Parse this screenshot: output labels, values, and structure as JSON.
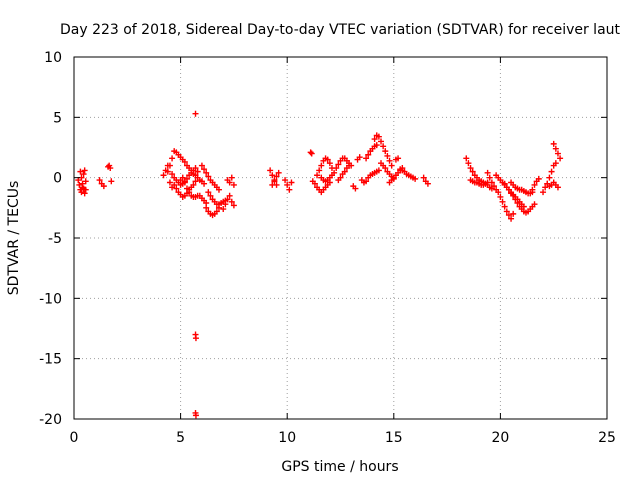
{
  "chart_data": {
    "type": "scatter",
    "title": "Day 223 of 2018, Sidereal Day-to-day VTEC variation (SDTVAR) for receiver laut",
    "xlabel": "GPS time / hours",
    "ylabel": "SDTVAR / TECUs",
    "xlim": [
      0,
      25
    ],
    "ylim": [
      -20,
      10
    ],
    "x_ticks": [
      0,
      5,
      10,
      15,
      20,
      25
    ],
    "y_ticks": [
      -20,
      -15,
      -10,
      -5,
      0,
      5,
      10
    ],
    "grid": true,
    "marker": "plus",
    "color": "#ff0000",
    "series": [
      {
        "name": "SDTVAR",
        "segments": [
          {
            "x": [
              0.2,
              0.25,
              0.3,
              0.35,
              0.4,
              0.45,
              0.5,
              0.55
            ],
            "y": [
              -0.2,
              -0.6,
              -1.0,
              -1.2,
              -0.8,
              0.3,
              0.6,
              -0.3
            ]
          },
          {
            "x": [
              0.3,
              0.35,
              0.4,
              0.45,
              0.5,
              0.55
            ],
            "y": [
              0.5,
              0.0,
              -0.5,
              -0.9,
              -1.3,
              -1.0
            ]
          },
          {
            "x": [
              1.2,
              1.3,
              1.4
            ],
            "y": [
              -0.2,
              -0.5,
              -0.7
            ]
          },
          {
            "x": [
              1.6,
              1.65,
              1.7,
              1.75
            ],
            "y": [
              0.9,
              1.0,
              0.8,
              -0.3
            ]
          },
          {
            "x": [
              4.2,
              4.3,
              4.4,
              4.5,
              4.6
            ],
            "y": [
              0.2,
              0.6,
              1.0,
              -0.4,
              -0.8
            ]
          },
          {
            "x": [
              4.4,
              4.5,
              4.6,
              4.7,
              4.8,
              4.9,
              5.0,
              5.1,
              5.2,
              5.3,
              5.4,
              5.5,
              5.6,
              5.7,
              5.8,
              5.9,
              6.0,
              6.1
            ],
            "y": [
              0.5,
              1.0,
              1.6,
              2.2,
              2.1,
              1.9,
              1.7,
              1.5,
              1.3,
              1.0,
              0.8,
              0.6,
              0.3,
              0.2,
              0.0,
              -0.2,
              -0.3,
              -0.5
            ]
          },
          {
            "x": [
              4.6,
              4.7,
              4.8,
              4.9,
              5.0,
              5.1,
              5.2,
              5.3,
              5.4,
              5.5,
              5.6,
              5.7,
              5.8
            ],
            "y": [
              0.3,
              0.0,
              -0.2,
              -0.4,
              -0.6,
              -0.5,
              -0.3,
              -0.1,
              0.2,
              0.4,
              0.6,
              0.8,
              0.5
            ]
          },
          {
            "x": [
              4.7,
              4.8,
              4.9,
              5.0,
              5.1,
              5.2,
              5.3,
              5.4,
              5.5,
              5.6,
              5.7
            ],
            "y": [
              -0.6,
              -0.9,
              -1.2,
              -1.4,
              -1.6,
              -1.5,
              -1.3,
              -1.0,
              -0.8,
              -0.6,
              -0.3
            ]
          },
          {
            "x": [
              5.0,
              5.1,
              5.2,
              5.3,
              5.4,
              5.5,
              5.6,
              5.7,
              5.8,
              5.9,
              6.0,
              6.1,
              6.2
            ],
            "y": [
              -0.2,
              0.0,
              -0.4,
              -0.9,
              -1.2,
              -1.5,
              -1.6,
              -1.6,
              -1.5,
              -1.5,
              -1.7,
              -1.9,
              -2.1
            ]
          },
          {
            "x": [
              5.7
            ],
            "y": [
              5.3
            ]
          },
          {
            "x": [
              5.7,
              5.72
            ],
            "y": [
              -13.0,
              -13.3
            ]
          },
          {
            "x": [
              5.7,
              5.72
            ],
            "y": [
              -19.5,
              -19.7
            ]
          },
          {
            "x": [
              6.0,
              6.1,
              6.2,
              6.3,
              6.4,
              6.5,
              6.6,
              6.7,
              6.8
            ],
            "y": [
              1.0,
              0.7,
              0.4,
              0.1,
              -0.2,
              -0.4,
              -0.6,
              -0.8,
              -1.0
            ]
          },
          {
            "x": [
              6.2,
              6.3,
              6.4,
              6.5,
              6.6,
              6.7,
              6.8
            ],
            "y": [
              -2.5,
              -2.8,
              -3.0,
              -3.1,
              -3.0,
              -2.8,
              -2.5
            ]
          },
          {
            "x": [
              6.3,
              6.4,
              6.5,
              6.6,
              6.7,
              6.8,
              6.9,
              7.0,
              7.1
            ],
            "y": [
              -1.2,
              -1.5,
              -1.8,
              -2.0,
              -2.2,
              -2.2,
              -2.1,
              -2.0,
              -1.9
            ]
          },
          {
            "x": [
              7.0,
              7.1,
              7.2,
              7.3,
              7.4,
              7.5
            ],
            "y": [
              -2.6,
              -2.2,
              -1.8,
              -1.5,
              -2.0,
              -2.3
            ]
          },
          {
            "x": [
              7.2,
              7.3,
              7.4,
              7.5
            ],
            "y": [
              -0.2,
              -0.4,
              0.0,
              -0.6
            ]
          },
          {
            "x": [
              9.2,
              9.3,
              9.4,
              9.5
            ],
            "y": [
              0.6,
              0.2,
              -0.2,
              -0.6
            ]
          },
          {
            "x": [
              9.3,
              9.4,
              9.5,
              9.6
            ],
            "y": [
              -0.6,
              -0.3,
              0.1,
              0.4
            ]
          },
          {
            "x": [
              9.9,
              10.0,
              10.1,
              10.2
            ],
            "y": [
              -0.2,
              -0.6,
              -1.0,
              -0.4
            ]
          },
          {
            "x": [
              11.1,
              11.15
            ],
            "y": [
              2.1,
              2.0
            ]
          },
          {
            "x": [
              11.2,
              11.3
            ],
            "y": [
              -0.3,
              -0.5
            ]
          },
          {
            "x": [
              11.4,
              11.5,
              11.6,
              11.7,
              11.8,
              11.9,
              12.0,
              12.1
            ],
            "y": [
              0.2,
              0.6,
              1.0,
              1.4,
              1.6,
              1.5,
              1.2,
              0.8
            ]
          },
          {
            "x": [
              11.4,
              11.5,
              11.6,
              11.7,
              11.8,
              11.9,
              12.0
            ],
            "y": [
              -0.8,
              -1.0,
              -1.2,
              -1.0,
              -0.8,
              -0.6,
              -0.4
            ]
          },
          {
            "x": [
              11.6,
              11.7,
              11.8,
              11.9,
              12.0,
              12.1,
              12.2
            ],
            "y": [
              0.0,
              -0.2,
              -0.3,
              -0.2,
              0.0,
              0.2,
              0.4
            ]
          },
          {
            "x": [
              12.3,
              12.4,
              12.5,
              12.6,
              12.7,
              12.8,
              12.9,
              13.0
            ],
            "y": [
              0.8,
              1.1,
              1.4,
              1.6,
              1.6,
              1.4,
              1.2,
              1.0
            ]
          },
          {
            "x": [
              12.4,
              12.5,
              12.6,
              12.7,
              12.8,
              12.9
            ],
            "y": [
              -0.2,
              0.0,
              0.3,
              0.5,
              0.8,
              1.0
            ]
          },
          {
            "x": [
              13.1,
              13.2
            ],
            "y": [
              -0.7,
              -0.9
            ]
          },
          {
            "x": [
              13.3,
              13.4
            ],
            "y": [
              1.5,
              1.7
            ]
          },
          {
            "x": [
              13.5,
              13.6,
              13.7,
              13.8,
              13.9,
              14.0,
              14.1,
              14.2,
              14.3
            ],
            "y": [
              -0.2,
              -0.4,
              -0.3,
              0.0,
              0.2,
              0.3,
              0.4,
              0.5,
              0.6
            ]
          },
          {
            "x": [
              13.7,
              13.8,
              13.9,
              14.0,
              14.1,
              14.2
            ],
            "y": [
              1.6,
              1.9,
              2.2,
              2.4,
              2.6,
              2.7
            ]
          },
          {
            "x": [
              14.1,
              14.2,
              14.3,
              14.4,
              14.5,
              14.6,
              14.7,
              14.8,
              14.9
            ],
            "y": [
              3.2,
              3.5,
              3.4,
              3.0,
              2.6,
              2.2,
              1.8,
              1.4,
              1.0
            ]
          },
          {
            "x": [
              14.4,
              14.5,
              14.6,
              14.7,
              14.8,
              14.9,
              15.0
            ],
            "y": [
              1.2,
              1.0,
              0.8,
              0.5,
              0.3,
              0.1,
              -0.1
            ]
          },
          {
            "x": [
              14.8,
              14.9,
              15.0,
              15.1,
              15.2,
              15.3,
              15.4
            ],
            "y": [
              -0.4,
              -0.2,
              0.0,
              0.2,
              0.4,
              0.6,
              0.8
            ]
          },
          {
            "x": [
              15.1,
              15.2
            ],
            "y": [
              1.5,
              1.6
            ]
          },
          {
            "x": [
              15.3,
              15.4,
              15.5,
              15.6,
              15.7,
              15.8,
              15.9,
              16.0
            ],
            "y": [
              0.7,
              0.6,
              0.5,
              0.3,
              0.2,
              0.1,
              0.0,
              -0.1
            ]
          },
          {
            "x": [
              16.4,
              16.5,
              16.6
            ],
            "y": [
              0.0,
              -0.3,
              -0.5
            ]
          },
          {
            "x": [
              18.4,
              18.5,
              18.6,
              18.7,
              18.8,
              18.9,
              19.0,
              19.1,
              19.2,
              19.3,
              19.4
            ],
            "y": [
              1.6,
              1.2,
              0.8,
              0.5,
              0.2,
              0.0,
              -0.2,
              -0.3,
              -0.4,
              -0.5,
              -0.4
            ]
          },
          {
            "x": [
              18.6,
              18.7,
              18.8,
              18.9,
              19.0,
              19.1,
              19.2,
              19.3,
              19.4,
              19.5,
              19.6
            ],
            "y": [
              -0.2,
              -0.3,
              -0.4,
              -0.4,
              -0.5,
              -0.6,
              -0.6,
              -0.5,
              -0.6,
              -0.8,
              -0.9
            ]
          },
          {
            "x": [
              19.4,
              19.5,
              19.6,
              19.7,
              19.8
            ],
            "y": [
              0.4,
              0.0,
              -0.4,
              -0.7,
              -1.0
            ]
          },
          {
            "x": [
              19.8,
              19.9,
              20.0,
              20.1,
              20.2,
              20.3,
              20.4,
              20.5,
              20.6,
              20.7,
              20.8,
              20.9,
              21.0,
              21.1
            ],
            "y": [
              0.2,
              0.0,
              -0.2,
              -0.4,
              -0.6,
              -0.8,
              -1.0,
              -1.2,
              -1.4,
              -1.6,
              -1.8,
              -2.0,
              -2.2,
              -2.4
            ]
          },
          {
            "x": [
              19.9,
              20.0,
              20.1,
              20.2,
              20.3,
              20.4,
              20.5,
              20.6
            ],
            "y": [
              -1.2,
              -1.6,
              -2.0,
              -2.4,
              -2.8,
              -3.1,
              -3.4,
              -3.0
            ]
          },
          {
            "x": [
              20.2,
              20.3,
              20.4,
              20.5,
              20.6,
              20.7,
              20.8,
              20.9,
              21.0,
              21.1,
              21.2,
              21.3,
              21.4,
              21.5,
              21.6
            ],
            "y": [
              -0.5,
              -0.8,
              -1.0,
              -1.3,
              -1.5,
              -1.8,
              -2.1,
              -2.4,
              -2.6,
              -2.8,
              -2.9,
              -2.8,
              -2.6,
              -2.4,
              -2.2
            ]
          },
          {
            "x": [
              20.5,
              20.6,
              20.7,
              20.8,
              20.9,
              21.0,
              21.1,
              21.2,
              21.3,
              21.4,
              21.5
            ],
            "y": [
              -0.4,
              -0.6,
              -0.8,
              -0.9,
              -1.0,
              -1.0,
              -1.1,
              -1.2,
              -1.3,
              -1.3,
              -1.2
            ]
          },
          {
            "x": [
              21.5,
              21.6,
              21.7,
              21.8
            ],
            "y": [
              -1.0,
              -0.6,
              -0.3,
              -0.1
            ]
          },
          {
            "x": [
              22.0,
              22.1,
              22.2,
              22.3,
              22.4,
              22.5,
              22.6
            ],
            "y": [
              -1.2,
              -0.8,
              -0.5,
              0.0,
              0.5,
              1.0,
              1.2
            ]
          },
          {
            "x": [
              22.5,
              22.6,
              22.7,
              22.8
            ],
            "y": [
              2.8,
              2.4,
              2.0,
              1.6
            ]
          },
          {
            "x": [
              22.2,
              22.3,
              22.4,
              22.5,
              22.6,
              22.7
            ],
            "y": [
              -0.5,
              -0.7,
              -0.6,
              -0.4,
              -0.6,
              -0.8
            ]
          }
        ]
      }
    ]
  }
}
